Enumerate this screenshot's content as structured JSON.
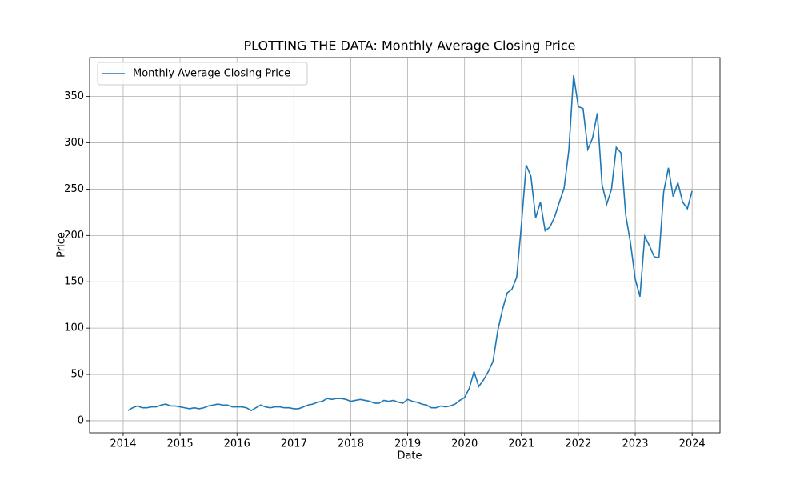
{
  "chart_data": {
    "type": "line",
    "title": "PLOTTING THE DATA: Monthly Average Closing Price",
    "x_label": "Date",
    "y_label": "Price",
    "x": [
      "2014-01",
      "2014-02",
      "2014-03",
      "2014-04",
      "2014-05",
      "2014-06",
      "2014-07",
      "2014-08",
      "2014-09",
      "2014-10",
      "2014-11",
      "2014-12",
      "2015-01",
      "2015-02",
      "2015-03",
      "2015-04",
      "2015-05",
      "2015-06",
      "2015-07",
      "2015-08",
      "2015-09",
      "2015-10",
      "2015-11",
      "2015-12",
      "2016-01",
      "2016-02",
      "2016-03",
      "2016-04",
      "2016-05",
      "2016-06",
      "2016-07",
      "2016-08",
      "2016-09",
      "2016-10",
      "2016-11",
      "2016-12",
      "2017-01",
      "2017-02",
      "2017-03",
      "2017-04",
      "2017-05",
      "2017-06",
      "2017-07",
      "2017-08",
      "2017-09",
      "2017-10",
      "2017-11",
      "2017-12",
      "2018-01",
      "2018-02",
      "2018-03",
      "2018-04",
      "2018-05",
      "2018-06",
      "2018-07",
      "2018-08",
      "2018-09",
      "2018-10",
      "2018-11",
      "2018-12",
      "2019-01",
      "2019-02",
      "2019-03",
      "2019-04",
      "2019-05",
      "2019-06",
      "2019-07",
      "2019-08",
      "2019-09",
      "2019-10",
      "2019-11",
      "2019-12",
      "2020-01",
      "2020-02",
      "2020-03",
      "2020-04",
      "2020-05",
      "2020-06",
      "2020-07",
      "2020-08",
      "2020-09",
      "2020-10",
      "2020-11",
      "2020-12",
      "2021-01",
      "2021-02",
      "2021-03",
      "2021-04",
      "2021-05",
      "2021-06",
      "2021-07",
      "2021-08",
      "2021-09",
      "2021-10",
      "2021-11",
      "2021-12",
      "2022-01",
      "2022-02",
      "2022-03",
      "2022-04",
      "2022-05",
      "2022-06",
      "2022-07",
      "2022-08",
      "2022-09",
      "2022-10",
      "2022-11",
      "2022-12",
      "2023-01",
      "2023-02",
      "2023-03",
      "2023-04",
      "2023-05",
      "2023-06",
      "2023-07",
      "2023-08",
      "2023-09",
      "2023-10",
      "2023-11",
      "2023-12"
    ],
    "series": [
      {
        "name": "Monthly Average Closing Price",
        "color": "#1f77b4",
        "values": [
          11,
          14,
          16,
          14,
          14,
          15,
          15,
          17,
          18,
          16,
          16,
          15,
          14,
          13,
          14,
          13,
          14,
          16,
          17,
          18,
          17,
          17,
          15,
          15,
          15,
          14,
          11,
          14,
          17,
          15,
          14,
          15,
          15,
          14,
          14,
          13,
          13,
          15,
          17,
          18,
          20,
          21,
          24,
          23,
          24,
          24,
          23,
          21,
          22,
          23,
          22,
          21,
          19,
          19,
          22,
          21,
          22,
          20,
          19,
          23,
          21,
          20,
          18,
          17,
          14,
          14,
          16,
          15,
          16,
          18,
          22,
          25,
          35,
          53,
          37,
          44,
          53,
          64,
          97,
          120,
          138,
          142,
          155,
          212,
          276,
          264,
          219,
          236,
          205,
          209,
          220,
          236,
          251,
          292,
          373,
          339,
          337,
          293,
          305,
          332,
          255,
          234,
          250,
          295,
          289,
          222,
          192,
          153,
          134,
          199,
          189,
          177,
          176,
          247,
          273,
          242,
          257,
          236,
          229,
          248
        ]
      }
    ],
    "xlim": [
      2013.41,
      2024.49
    ],
    "xticks": [
      2014,
      2015,
      2016,
      2017,
      2018,
      2019,
      2020,
      2021,
      2022,
      2023,
      2024
    ],
    "ylim": [
      -13,
      392
    ],
    "yticks": [
      0,
      50,
      100,
      150,
      200,
      250,
      300,
      350
    ],
    "grid": true,
    "legend": "upper left"
  }
}
